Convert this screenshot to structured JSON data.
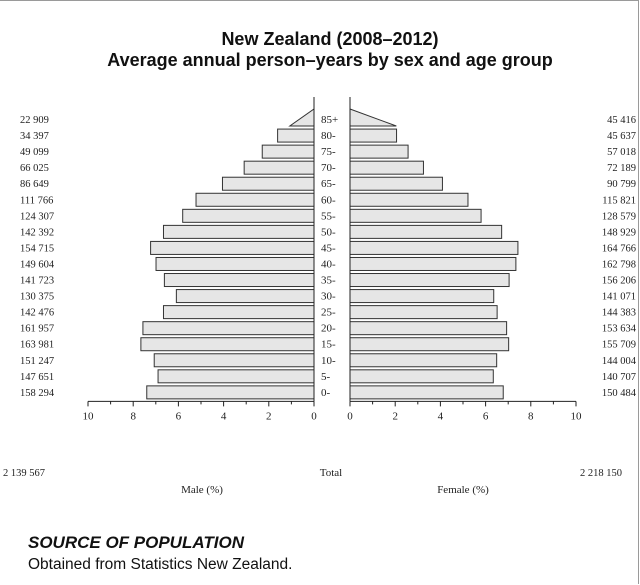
{
  "chart_data": {
    "type": "bar",
    "subtype": "population-pyramid",
    "title_line1": "New Zealand (2008–2012)",
    "title_line2": "Average annual person–years by sex and age group",
    "age_groups": [
      "85+",
      "80-",
      "75-",
      "70-",
      "65-",
      "60-",
      "55-",
      "50-",
      "45-",
      "40-",
      "35-",
      "30-",
      "25-",
      "20-",
      "15-",
      "10-",
      "5-",
      "0-"
    ],
    "series": [
      {
        "name": "Male",
        "counts": [
          "22 909",
          "34 397",
          "49 099",
          "66 025",
          "86 649",
          "111 766",
          "124 307",
          "142 392",
          "154 715",
          "149 604",
          "141 723",
          "130 375",
          "142 476",
          "161 957",
          "163 981",
          "151 247",
          "147 651",
          "158 294"
        ],
        "percent": [
          1.07,
          1.61,
          2.29,
          3.09,
          4.05,
          5.22,
          5.81,
          6.66,
          7.23,
          6.99,
          6.62,
          6.09,
          6.66,
          7.57,
          7.66,
          7.07,
          6.9,
          7.4
        ]
      },
      {
        "name": "Female",
        "counts": [
          "45 416",
          "45 637",
          "57 018",
          "72 189",
          "90 799",
          "115 821",
          "128 579",
          "148 929",
          "164 766",
          "162 798",
          "156 206",
          "141 071",
          "144 383",
          "153 634",
          "155 709",
          "144 004",
          "140 707",
          "150 484"
        ],
        "percent": [
          2.05,
          2.06,
          2.57,
          3.25,
          4.09,
          5.22,
          5.8,
          6.71,
          7.43,
          7.34,
          7.04,
          6.36,
          6.51,
          6.93,
          7.02,
          6.49,
          6.34,
          6.78
        ]
      }
    ],
    "x_ticks": [
      "10",
      "8",
      "6",
      "4",
      "2",
      "0"
    ],
    "xlim": [
      0,
      10
    ],
    "xlabel_left": "Male (%)",
    "xlabel_right": "Female (%)",
    "total_label": "Total",
    "total_male": "2 139 567",
    "total_female": "2 218 150",
    "bar_fill": "#e6e6e6",
    "bar_stroke": "#333333"
  },
  "source": {
    "heading": "SOURCE OF POPULATION",
    "text": "Obtained from Statistics New Zealand."
  }
}
